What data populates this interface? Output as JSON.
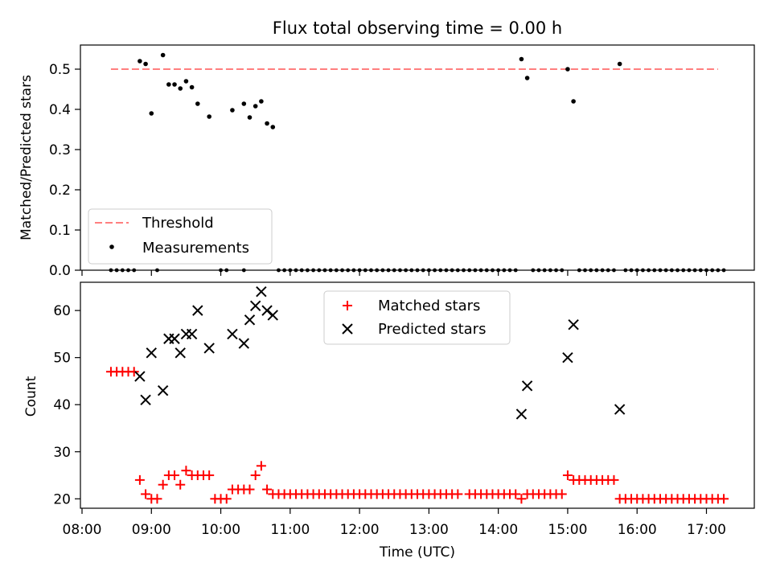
{
  "figure": {
    "title": "Flux total observing time = 0.00 h"
  },
  "chart_data": [
    {
      "type": "scatter",
      "ylabel": "Matched/Predicted stars",
      "xlim": [
        "08:00",
        "17:40"
      ],
      "ylim": [
        0,
        0.56
      ],
      "yticks": [
        0.0,
        0.1,
        0.2,
        0.3,
        0.4,
        0.5
      ],
      "ytick_labels": [
        "0.0",
        "0.1",
        "0.2",
        "0.3",
        "0.4",
        "0.5"
      ],
      "xticks": [
        "08:00",
        "09:00",
        "10:00",
        "11:00",
        "12:00",
        "13:00",
        "14:00",
        "15:00",
        "16:00",
        "17:00"
      ],
      "grid": false,
      "legend": {
        "placement": "lower-left"
      },
      "series": [
        {
          "name": "Threshold",
          "kind": "dashed-line",
          "color": "#ff7f7f",
          "x": [
            "08:25",
            "17:10"
          ],
          "y": [
            0.5,
            0.5
          ]
        },
        {
          "name": "Measurements",
          "kind": "points",
          "color": "#000000",
          "x": [
            "08:50",
            "08:55",
            "09:00",
            "09:10",
            "09:15",
            "09:20",
            "09:25",
            "09:30",
            "09:35",
            "09:40",
            "09:50",
            "10:10",
            "10:20",
            "10:25",
            "10:30",
            "10:35",
            "10:40",
            "10:45",
            "14:20",
            "14:25",
            "15:00",
            "15:05",
            "15:45"
          ],
          "y": [
            0.52,
            0.513,
            0.39,
            0.535,
            0.462,
            0.462,
            0.452,
            0.47,
            0.455,
            0.414,
            0.382,
            0.398,
            0.414,
            0.38,
            0.408,
            0.42,
            0.365,
            0.356,
            0.525,
            0.478,
            0.5,
            0.42,
            0.513
          ]
        }
      ],
      "zero_points": {
        "x_ranges": [
          [
            "08:25",
            "08:45"
          ],
          [
            "09:05",
            "09:05"
          ],
          [
            "10:00",
            "10:05"
          ],
          [
            "10:20",
            "10:20"
          ],
          [
            "10:50",
            "13:30"
          ],
          [
            "13:35",
            "14:15"
          ],
          [
            "14:30",
            "14:55"
          ],
          [
            "15:10",
            "15:40"
          ],
          [
            "15:50",
            "17:15"
          ]
        ],
        "y": 0.0
      }
    },
    {
      "type": "scatter",
      "xlabel": "Time (UTC)",
      "ylabel": "Count",
      "xlim": [
        "08:00",
        "17:40"
      ],
      "ylim": [
        18,
        66
      ],
      "yticks": [
        20,
        30,
        40,
        50,
        60
      ],
      "ytick_labels": [
        "20",
        "30",
        "40",
        "50",
        "60"
      ],
      "xticks": [
        "08:00",
        "09:00",
        "10:00",
        "11:00",
        "12:00",
        "13:00",
        "14:00",
        "15:00",
        "16:00",
        "17:00"
      ],
      "xtick_labels": [
        "08:00",
        "09:00",
        "10:00",
        "11:00",
        "12:00",
        "13:00",
        "14:00",
        "15:00",
        "16:00",
        "17:00"
      ],
      "grid": false,
      "legend": {
        "placement": "upper-center"
      },
      "series": [
        {
          "name": "Matched stars",
          "marker": "plus",
          "color": "#ff0000",
          "segments": [
            {
              "from": "08:25",
              "to": "08:45",
              "y": 47
            },
            {
              "x": [
                "08:50",
                "08:55",
                "09:00",
                "09:05",
                "09:10",
                "09:15",
                "09:20",
                "09:25",
                "09:30",
                "09:35",
                "09:40",
                "09:45",
                "09:50"
              ],
              "y": [
                24,
                21,
                20,
                20,
                23,
                25,
                25,
                23,
                26,
                25,
                25,
                25,
                25
              ]
            },
            {
              "from": "09:55",
              "to": "10:05",
              "y": 20
            },
            {
              "from": "10:10",
              "to": "10:25",
              "y": 22
            },
            {
              "x": [
                "10:30",
                "10:35",
                "10:40"
              ],
              "y": [
                25,
                27,
                22
              ]
            },
            {
              "from": "10:45",
              "to": "13:25",
              "y": 21
            },
            {
              "from": "13:35",
              "to": "14:15",
              "y": 21
            },
            {
              "x": [
                "14:20"
              ],
              "y": [
                20
              ]
            },
            {
              "from": "14:25",
              "to": "14:55",
              "y": 21
            },
            {
              "x": [
                "15:00"
              ],
              "y": [
                25
              ]
            },
            {
              "from": "15:05",
              "to": "15:40",
              "y": 24
            },
            {
              "from": "15:45",
              "to": "17:15",
              "y": 20
            }
          ]
        },
        {
          "name": "Predicted stars",
          "marker": "x",
          "color": "#000000",
          "x": [
            "08:50",
            "08:55",
            "09:00",
            "09:10",
            "09:15",
            "09:20",
            "09:25",
            "09:30",
            "09:35",
            "09:40",
            "09:50",
            "10:10",
            "10:20",
            "10:25",
            "10:30",
            "10:35",
            "10:40",
            "10:45",
            "14:20",
            "14:25",
            "15:00",
            "15:05",
            "15:45"
          ],
          "y": [
            46,
            41,
            51,
            43,
            54,
            54,
            51,
            55,
            55,
            60,
            52,
            55,
            53,
            58,
            61,
            64,
            60,
            59,
            38,
            44,
            50,
            57,
            39
          ]
        }
      ]
    }
  ]
}
